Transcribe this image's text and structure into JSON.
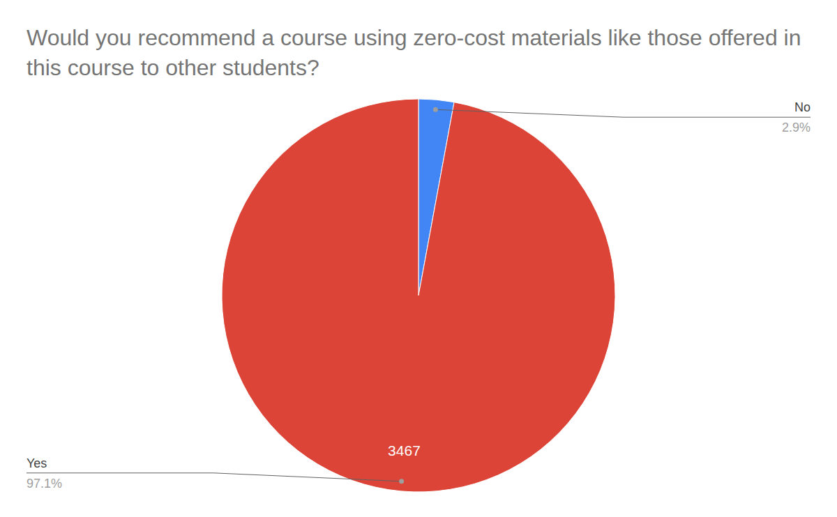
{
  "chart_data": {
    "type": "pie",
    "title": "Would you recommend a course using zero-cost materials like those offered in this course to other students?",
    "categories": [
      "No",
      "Yes"
    ],
    "values": [
      2.9,
      97.1
    ],
    "value_labels": [
      "2.9%",
      "97.1%"
    ],
    "counts": [
      null,
      3467
    ],
    "colors": [
      "#4285f4",
      "#db4437"
    ]
  }
}
